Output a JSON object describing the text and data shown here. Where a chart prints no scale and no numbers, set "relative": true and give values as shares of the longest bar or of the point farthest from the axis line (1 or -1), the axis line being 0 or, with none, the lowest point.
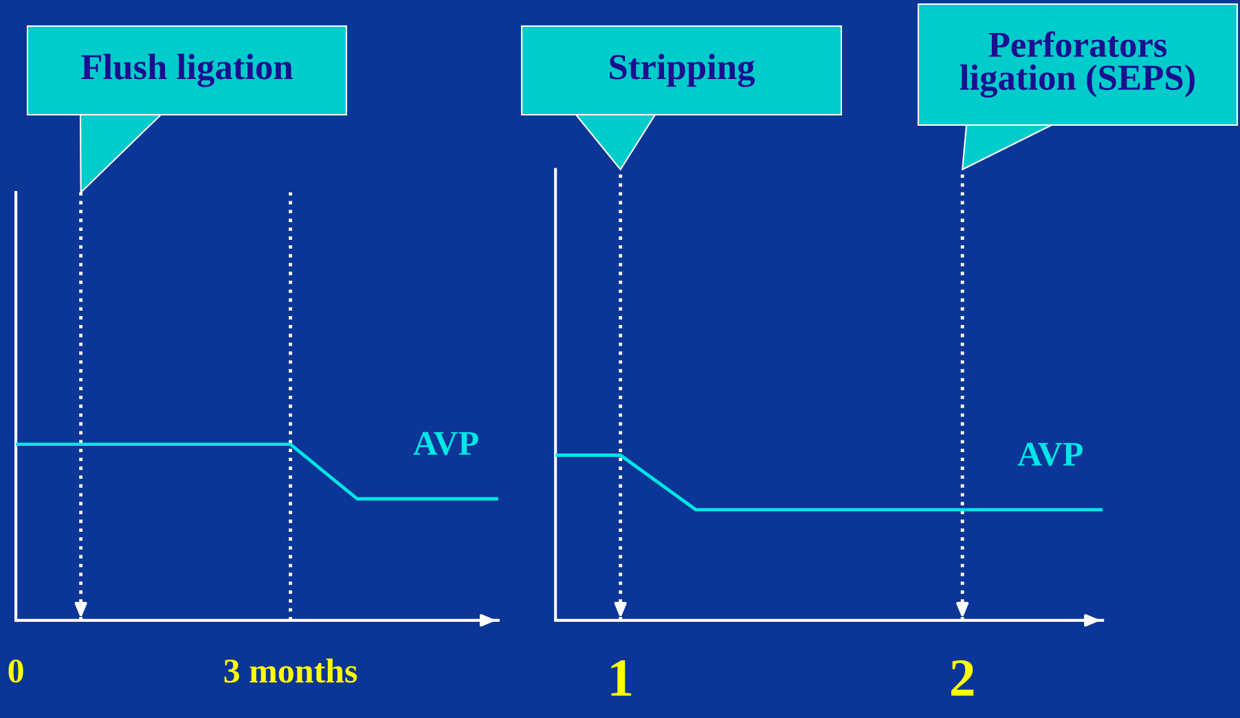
{
  "chart_data": [
    {
      "type": "line",
      "relative": true,
      "x": [
        0,
        3,
        3.73,
        5.27
      ],
      "series": [
        {
          "name": "AVP",
          "color": "#00e5e5",
          "values": [
            1,
            1,
            0.69,
            0.69
          ]
        }
      ],
      "xlim": [
        0,
        5.27
      ],
      "xticks": [
        {
          "value": 0,
          "label": "0"
        },
        {
          "value": 3,
          "label": "3 months"
        }
      ],
      "ref_lines": [
        {
          "axis": "x",
          "value": 0.71,
          "label": "Flush ligation",
          "color": "#ffffff",
          "line_style": "dotted"
        },
        {
          "axis": "x",
          "value": 3,
          "color": "#ffffff",
          "line_style": "dotted"
        }
      ],
      "tick_labels": "x",
      "grid": false,
      "marker": "none",
      "line_style": "solid"
    },
    {
      "type": "line",
      "relative": true,
      "x": [
        0.81,
        1,
        1.22,
        2.41
      ],
      "series": [
        {
          "name": "AVP",
          "color": "#00e5e5",
          "values": [
            1,
            1,
            0.67,
            0.67
          ]
        }
      ],
      "xlim": [
        0.81,
        2.41
      ],
      "xticks": [
        1,
        2
      ],
      "ref_lines": [
        {
          "axis": "x",
          "value": 1,
          "label": "Stripping",
          "color": "#ffffff",
          "line_style": "dotted"
        },
        {
          "axis": "x",
          "value": 2,
          "label": "Perforators\nligation (SEPS)",
          "color": "#ffffff",
          "line_style": "dotted"
        }
      ],
      "tick_labels": "x",
      "grid": false,
      "marker": "none",
      "line_style": "solid"
    }
  ]
}
